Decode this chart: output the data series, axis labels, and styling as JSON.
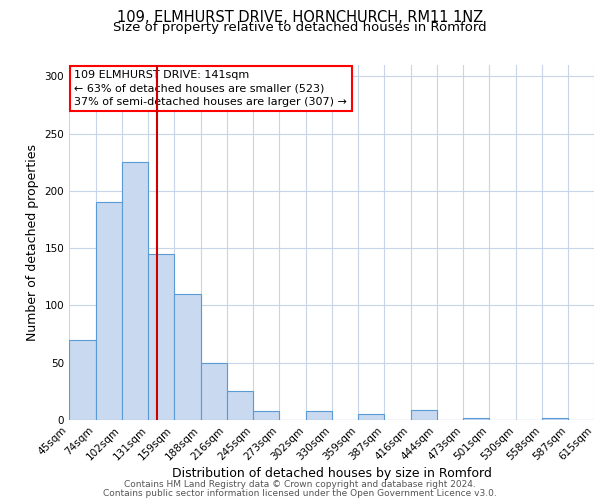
{
  "title": "109, ELMHURST DRIVE, HORNCHURCH, RM11 1NZ",
  "subtitle": "Size of property relative to detached houses in Romford",
  "xlabel": "Distribution of detached houses by size in Romford",
  "ylabel": "Number of detached properties",
  "bar_left_edges": [
    45,
    74,
    102,
    131,
    159,
    188,
    216,
    245,
    273,
    302,
    330,
    359,
    387,
    416,
    444,
    473,
    501,
    530,
    558,
    587
  ],
  "bar_widths": [
    29,
    28,
    29,
    28,
    29,
    28,
    29,
    28,
    29,
    28,
    29,
    28,
    29,
    28,
    29,
    28,
    29,
    28,
    29,
    28
  ],
  "bar_heights": [
    70,
    190,
    225,
    145,
    110,
    50,
    25,
    8,
    0,
    8,
    0,
    5,
    0,
    9,
    0,
    2,
    0,
    0,
    2,
    0
  ],
  "bar_color": "#c9d9f0",
  "bar_edge_color": "#5b9bd5",
  "tick_labels": [
    "45sqm",
    "74sqm",
    "102sqm",
    "131sqm",
    "159sqm",
    "188sqm",
    "216sqm",
    "245sqm",
    "273sqm",
    "302sqm",
    "330sqm",
    "359sqm",
    "387sqm",
    "416sqm",
    "444sqm",
    "473sqm",
    "501sqm",
    "530sqm",
    "558sqm",
    "587sqm",
    "615sqm"
  ],
  "vline_x": 141,
  "vline_color": "#cc0000",
  "ylim": [
    0,
    310
  ],
  "yticks": [
    0,
    50,
    100,
    150,
    200,
    250,
    300
  ],
  "annotation_text": "109 ELMHURST DRIVE: 141sqm\n← 63% of detached houses are smaller (523)\n37% of semi-detached houses are larger (307) →",
  "footer_line1": "Contains HM Land Registry data © Crown copyright and database right 2024.",
  "footer_line2": "Contains public sector information licensed under the Open Government Licence v3.0.",
  "bg_color": "#ffffff",
  "grid_color": "#c8d4e8",
  "title_fontsize": 10.5,
  "subtitle_fontsize": 9.5,
  "axis_label_fontsize": 9,
  "tick_fontsize": 7.5,
  "footer_fontsize": 6.5
}
